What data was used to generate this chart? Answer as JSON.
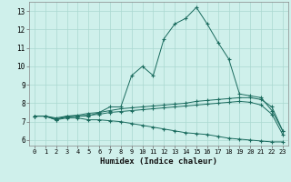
{
  "xlabel": "Humidex (Indice chaleur)",
  "bg_color": "#cff0eb",
  "grid_color": "#aad8d0",
  "line_color": "#1a6b5e",
  "xlim": [
    -0.5,
    23.5
  ],
  "ylim": [
    5.7,
    13.5
  ],
  "yticks": [
    6,
    7,
    8,
    9,
    10,
    11,
    12,
    13
  ],
  "xticks": [
    0,
    1,
    2,
    3,
    4,
    5,
    6,
    7,
    8,
    9,
    10,
    11,
    12,
    13,
    14,
    15,
    16,
    17,
    18,
    19,
    20,
    21,
    22,
    23
  ],
  "series": [
    {
      "x": [
        0,
        1,
        2,
        3,
        4,
        5,
        6,
        7,
        8,
        9,
        10,
        11,
        12,
        13,
        14,
        15,
        16,
        17,
        18,
        19,
        20,
        21,
        22,
        23
      ],
      "y": [
        7.3,
        7.3,
        7.1,
        7.3,
        7.3,
        7.3,
        7.5,
        7.8,
        7.8,
        9.5,
        10.0,
        9.5,
        11.5,
        12.3,
        12.6,
        13.2,
        12.3,
        11.3,
        10.4,
        8.5,
        8.4,
        8.3,
        7.6,
        6.5
      ]
    },
    {
      "x": [
        0,
        1,
        2,
        3,
        4,
        5,
        6,
        7,
        8,
        9,
        10,
        11,
        12,
        13,
        14,
        15,
        16,
        17,
        18,
        19,
        20,
        21,
        22,
        23
      ],
      "y": [
        7.3,
        7.3,
        7.2,
        7.3,
        7.35,
        7.45,
        7.5,
        7.6,
        7.7,
        7.75,
        7.8,
        7.85,
        7.9,
        7.95,
        8.0,
        8.1,
        8.15,
        8.2,
        8.25,
        8.3,
        8.3,
        8.2,
        7.8,
        6.5
      ]
    },
    {
      "x": [
        0,
        1,
        2,
        3,
        4,
        5,
        6,
        7,
        8,
        9,
        10,
        11,
        12,
        13,
        14,
        15,
        16,
        17,
        18,
        19,
        20,
        21,
        22,
        23
      ],
      "y": [
        7.3,
        7.3,
        7.15,
        7.25,
        7.3,
        7.35,
        7.4,
        7.5,
        7.55,
        7.6,
        7.65,
        7.7,
        7.75,
        7.8,
        7.85,
        7.9,
        7.95,
        8.0,
        8.05,
        8.1,
        8.05,
        7.9,
        7.4,
        6.3
      ]
    },
    {
      "x": [
        0,
        1,
        2,
        3,
        4,
        5,
        6,
        7,
        8,
        9,
        10,
        11,
        12,
        13,
        14,
        15,
        16,
        17,
        18,
        19,
        20,
        21,
        22,
        23
      ],
      "y": [
        7.3,
        7.3,
        7.1,
        7.2,
        7.2,
        7.1,
        7.1,
        7.05,
        7.0,
        6.9,
        6.8,
        6.7,
        6.6,
        6.5,
        6.4,
        6.35,
        6.3,
        6.2,
        6.1,
        6.05,
        6.0,
        5.95,
        5.9,
        5.9
      ]
    }
  ]
}
